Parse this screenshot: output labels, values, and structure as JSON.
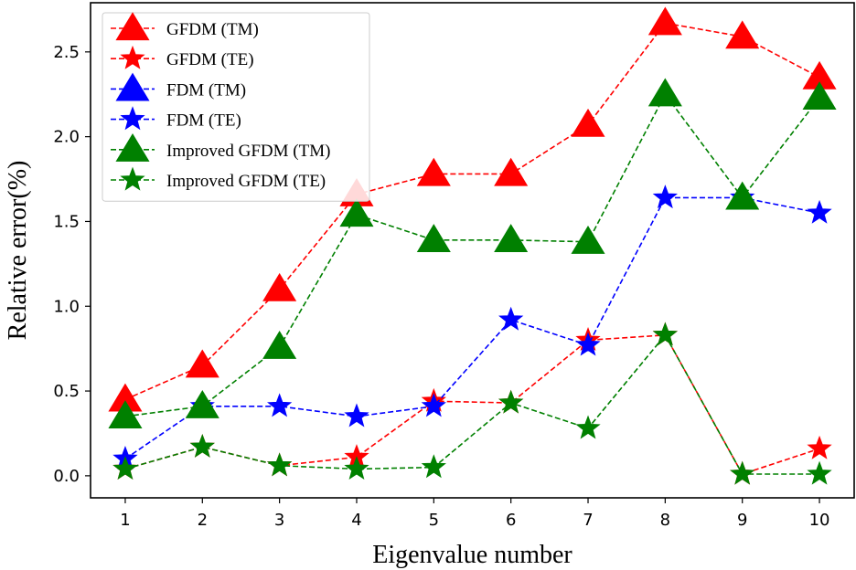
{
  "chart_data": {
    "type": "line",
    "title": "",
    "xlabel": "Eigenvalue number",
    "ylabel": "Relative error(%)",
    "x": [
      1,
      2,
      3,
      4,
      5,
      6,
      7,
      8,
      9,
      10
    ],
    "xticks": [
      "1",
      "2",
      "3",
      "4",
      "5",
      "6",
      "7",
      "8",
      "9",
      "10"
    ],
    "yticks": [
      "0.0",
      "0.5",
      "1.0",
      "1.5",
      "2.0",
      "2.5"
    ],
    "ytick_values": [
      0,
      0.5,
      1.0,
      1.5,
      2.0,
      2.5
    ],
    "xlim": [
      0.55,
      10.45
    ],
    "ylim": [
      -0.13,
      2.79
    ],
    "legend_position": "top-left",
    "grid": false,
    "series": [
      {
        "name": "GFDM (TM)",
        "color": "#ff0000",
        "marker": "triangle",
        "values": [
          0.45,
          0.65,
          1.1,
          1.66,
          1.78,
          1.78,
          2.07,
          2.67,
          2.59,
          2.35
        ]
      },
      {
        "name": "GFDM (TE)",
        "color": "#ff0000",
        "marker": "star",
        "values": [
          0.04,
          0.17,
          0.06,
          0.11,
          0.44,
          0.43,
          0.8,
          0.83,
          0.01,
          0.16
        ]
      },
      {
        "name": "FDM (TM)",
        "color": "#0000ff",
        "marker": "triangle",
        "values": null
      },
      {
        "name": "FDM (TE)",
        "color": "#0000ff",
        "marker": "star",
        "values": [
          0.1,
          0.41,
          0.41,
          0.35,
          0.41,
          0.92,
          0.77,
          1.64,
          1.64,
          1.55
        ]
      },
      {
        "name": "Improved GFDM (TM)",
        "color": "#008000",
        "marker": "triangle",
        "values": [
          0.35,
          0.41,
          0.76,
          1.54,
          1.39,
          1.39,
          1.38,
          2.25,
          1.64,
          2.23
        ]
      },
      {
        "name": "Improved GFDM (TE)",
        "color": "#008000",
        "marker": "star",
        "values": [
          0.04,
          0.17,
          0.06,
          0.04,
          0.05,
          0.43,
          0.28,
          0.83,
          0.01,
          0.01
        ]
      }
    ]
  }
}
